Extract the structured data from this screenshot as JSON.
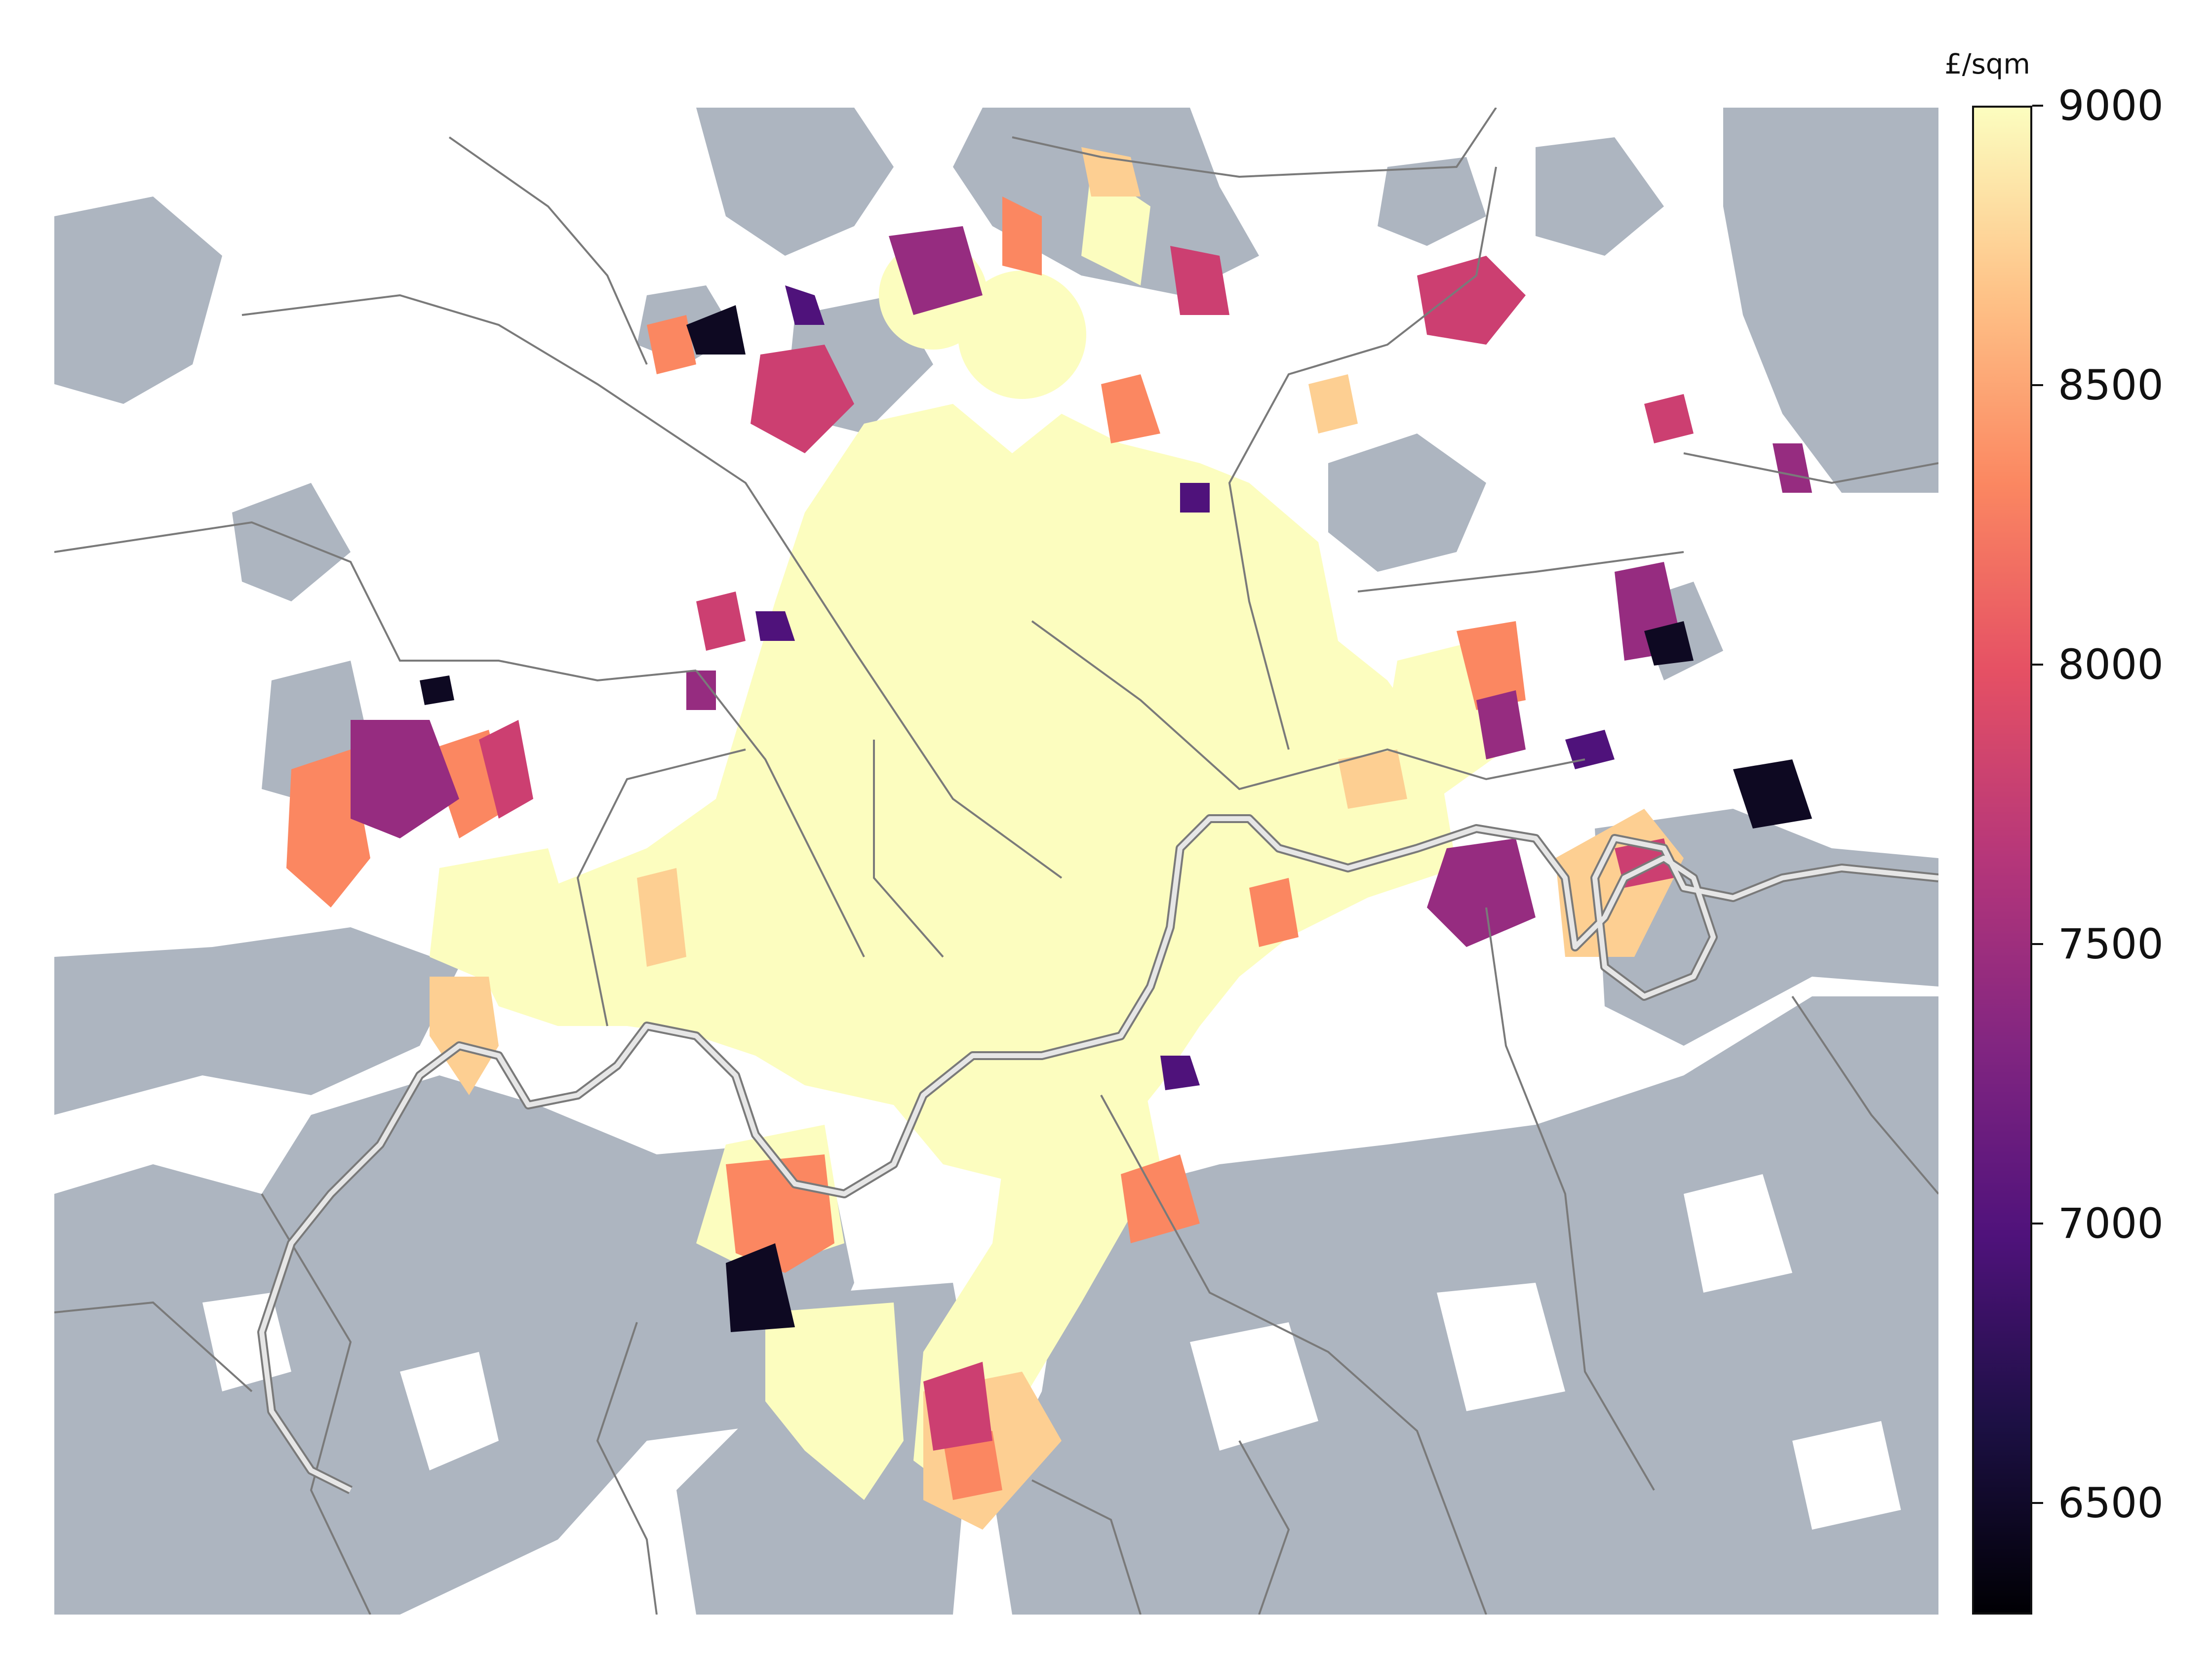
{
  "colorbar": {
    "title": "£/sqm",
    "min": 6300,
    "max": 9000,
    "colormap": "magma",
    "ticks": [
      {
        "value": 9000,
        "label": "9000"
      },
      {
        "value": 8500,
        "label": "8500"
      },
      {
        "value": 8000,
        "label": "8000"
      },
      {
        "value": 7500,
        "label": "7500"
      },
      {
        "value": 7000,
        "label": "7000"
      },
      {
        "value": 6500,
        "label": "6500"
      }
    ],
    "stops": [
      "#000004",
      "#1c1044",
      "#4f127b",
      "#812581",
      "#b5367a",
      "#e55064",
      "#fb8761",
      "#fec287",
      "#fcfdbf"
    ]
  },
  "map": {
    "no_data_color": "#adb5c0",
    "river_color": "#e4e4e4",
    "boundary_color": "#7a7a7a",
    "background_color": "#ffffff"
  }
}
